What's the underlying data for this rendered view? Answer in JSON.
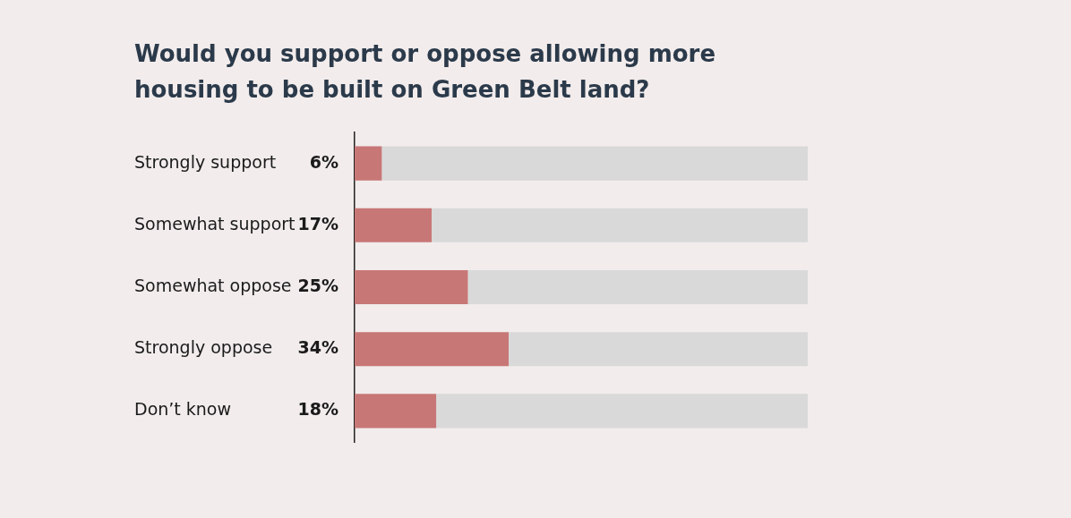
{
  "chart_data": {
    "type": "bar",
    "orientation": "horizontal",
    "stacked": true,
    "title": "Would you support or oppose allowing more housing to be built on Green Belt land?",
    "categories": [
      "Strongly support",
      "Somewhat support",
      "Somewhat oppose",
      "Strongly oppose",
      "Don’t know"
    ],
    "series": [
      {
        "color": "#c87777",
        "values": [
          6,
          17,
          25,
          34,
          18
        ],
        "value_labels": [
          "6%",
          "17%",
          "25%",
          "34%",
          "18%"
        ]
      },
      {
        "color": "#d9d9d9",
        "values": [
          94,
          83,
          75,
          66,
          82
        ]
      }
    ],
    "xlim": [
      0,
      100
    ],
    "tick_labels": "y",
    "grid": false,
    "legend": false
  }
}
